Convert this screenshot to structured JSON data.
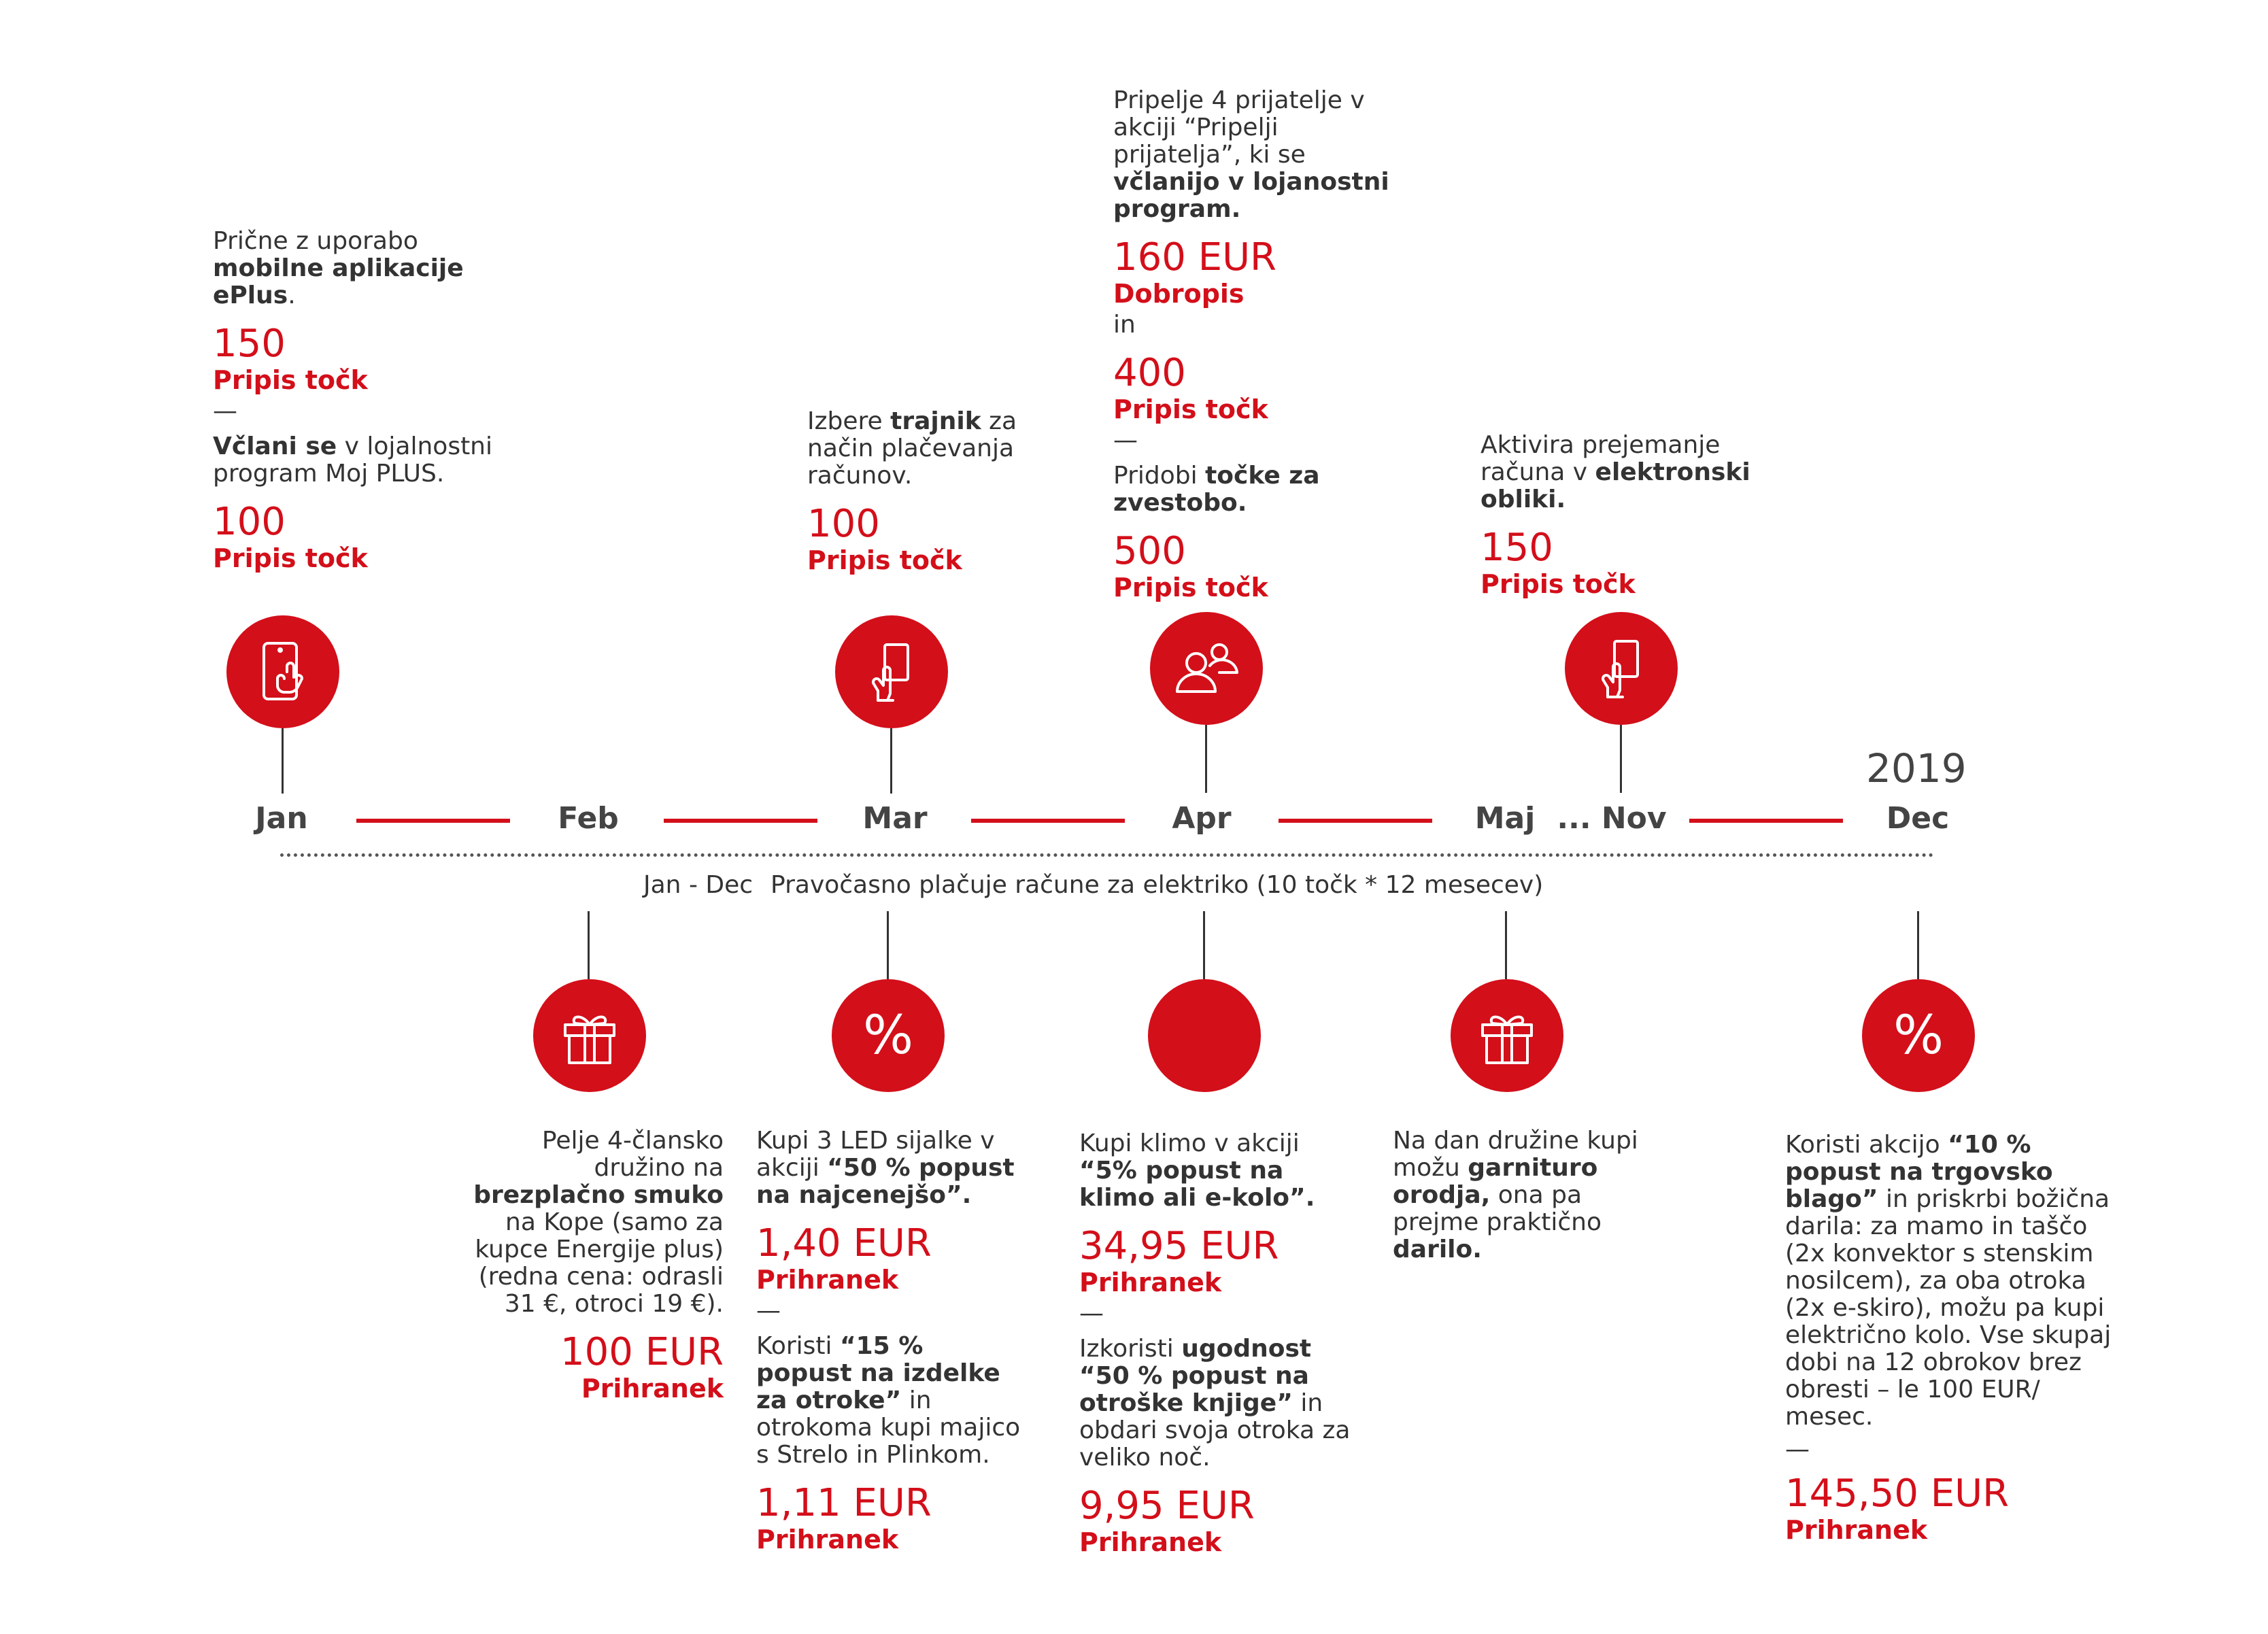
{
  "colors": {
    "accent": "#d30f1a",
    "text": "#333333"
  },
  "year": "2019",
  "months": [
    "Jan",
    "Feb",
    "Mar",
    "Apr",
    "Maj",
    "... Nov",
    "Dec"
  ],
  "yearly": {
    "period": "Jan - Dec",
    "text": "Pravočasno plačuje račune za elektriko (10 točk * 12 mesecev)"
  },
  "top": {
    "jan": {
      "icon": "phone-touch-icon",
      "d1a": "Prične z uporabo ",
      "d1b": "mobilne aplikacije ePlus",
      "d1c": ".",
      "v1": "150",
      "l1": "Pripis točk",
      "dash": "—",
      "d2a": "Včlani se",
      "d2b": " v lojalnostni program Moj PLUS.",
      "v2": "100",
      "l2": "Pripis točk"
    },
    "mar": {
      "icon": "card-hand-icon",
      "d1a": "Izbere ",
      "d1b": "trajnik",
      "d1c": " za način plačevanja računov.",
      "v1": "100",
      "l1": "Pripis točk"
    },
    "apr": {
      "icon": "people-icon",
      "d1a": "Pripelje 4 prijatelje v akciji “Pripelji prijatelja”, ki se ",
      "d1b": "včlanijo v lojanostni program.",
      "v1": "160 EUR",
      "l1": "Dobropis",
      "conj": "in",
      "v2": "400",
      "l2": "Pripis točk",
      "dash": "—",
      "d2a": "Pridobi ",
      "d2b": "točke za zvestobo.",
      "v3": "500",
      "l3": "Pripis točk"
    },
    "nov": {
      "icon": "card-hand-icon",
      "d1a": "Aktivira prejemanje računa v ",
      "d1b": "elektronski obliki.",
      "v1": "150",
      "l1": "Pripis točk"
    }
  },
  "bottom": {
    "feb": {
      "icon": "gift-icon",
      "d1a": "Pelje 4-člansko družino na ",
      "d1b": "brezplačno smuko",
      "d1c": " na Kope (samo za kupce Energije plus) (redna cena: odrasli 31 €, otroci 19 €).",
      "v1": "100 EUR",
      "l1": "Prihranek"
    },
    "mar": {
      "icon": "percent-icon",
      "pct": "%",
      "d1a": "Kupi 3 LED sijalke v akciji ",
      "d1b": "“50 % popust na najcenejšo”.",
      "v1": "1,40 EUR",
      "l1": "Prihranek",
      "dash": "—",
      "d2a": "Koristi ",
      "d2b": "“15 % popust na izdelke za otroke”",
      "d2c": " in otrokoma kupi majico s Strelo in Plinkom.",
      "v2": "1,11 EUR",
      "l2": "Prihranek"
    },
    "apr": {
      "icon": "dot-icon",
      "d1a": "Kupi klimo v akciji ",
      "d1b": "“5% popust na klimo ali e-kolo”.",
      "v1": "34,95 EUR",
      "l1": "Prihranek",
      "dash": "—",
      "d2a": "Izkoristi ",
      "d2b": "ugodnost “50 % popust  na otroške knjige”",
      "d2c": " in obdari svoja otroka za veliko noč.",
      "v2": "9,95 EUR",
      "l2": "Prihranek"
    },
    "maj": {
      "icon": "gift-icon",
      "d1a": "Na dan družine kupi možu ",
      "d1b": "garnituro orodja,",
      "d1c": " ona pa prejme praktično ",
      "d1d": "darilo."
    },
    "dec": {
      "icon": "percent-icon",
      "pct": "%",
      "d1a": "Koristi akcijo ",
      "d1b": "“10 % popust na trgovsko blago”",
      "d1c": " in priskrbi božična darila: za mamo in taščo (2x konvektor s stenskim nosilcem), za oba otroka (2x e-skiro), možu pa kupi električno kolo. Vse skupaj dobi na 12 obrokov brez obresti – le 100 EUR/ mesec.",
      "dash": "—",
      "v1": "145,50 EUR",
      "l1": "Prihranek"
    }
  }
}
